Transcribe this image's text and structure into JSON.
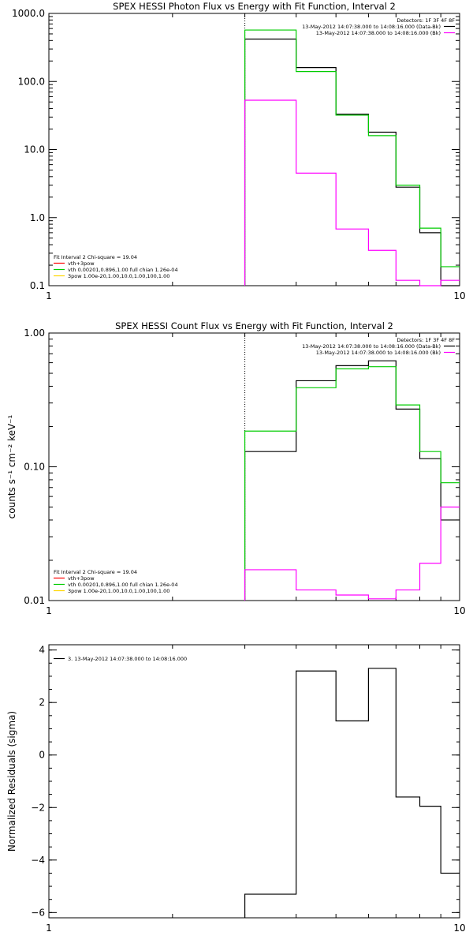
{
  "chart_data": [
    {
      "type": "line",
      "title": "SPEX HESSI Photon Flux vs Energy with Fit Function, Interval 2",
      "xscale": "log",
      "yscale": "log",
      "xlim": [
        1,
        10
      ],
      "ylim": [
        0.1,
        1000
      ],
      "xticks": [
        {
          "v": 1,
          "label": "1"
        },
        {
          "v": 10,
          "label": "10"
        }
      ],
      "yticks": [
        {
          "v": 0.1,
          "label": "0.1"
        },
        {
          "v": 1,
          "label": "1.0"
        },
        {
          "v": 10,
          "label": "10.0"
        },
        {
          "v": 100,
          "label": "100.0"
        },
        {
          "v": 1000,
          "label": "1000.0"
        }
      ],
      "ylabel": "",
      "vline": 3.0,
      "edges": [
        3,
        4,
        5,
        6,
        7,
        8,
        9,
        10
      ],
      "series": [
        {
          "color": "#000000",
          "values": [
            420,
            160,
            33,
            18,
            2.8,
            0.6,
            0.1
          ]
        },
        {
          "color": "#00cc00",
          "values": [
            570,
            140,
            32,
            16,
            3.0,
            0.7,
            0.19
          ]
        },
        {
          "color": "#ff00ff",
          "values": [
            53,
            4.5,
            0.68,
            0.33,
            0.12,
            0.1,
            0.12
          ]
        }
      ],
      "legend_right": {
        "header": "Detectors: 1F 3F 4F 8F",
        "items": [
          {
            "label": "13-May-2012 14:07:38.000 to 14:08:16.000 (Data-Bk)",
            "color": "#000000"
          },
          {
            "label": "13-May-2012 14:07:38.000 to 14:08:16.000 (Bk)",
            "color": "#ff00ff"
          }
        ]
      },
      "legend_left": {
        "header": "Fit Interval 2   Chi-square = 19.04",
        "items": [
          {
            "label": "vth+3pow",
            "color": "#ff0000"
          },
          {
            "label": "vth 0.00201,0.896,1.00   full chian 1.26e-04",
            "color": "#00cc00"
          },
          {
            "label": "3pow 1.00e-20,1.00,10.0,1.00,100,1.00",
            "color": "#ffd700"
          }
        ]
      }
    },
    {
      "type": "line",
      "title": "SPEX HESSI Count Flux vs Energy with Fit Function, Interval 2",
      "xscale": "log",
      "yscale": "log",
      "xlim": [
        1,
        10
      ],
      "ylim": [
        0.01,
        1.0
      ],
      "xticks": [
        {
          "v": 1,
          "label": "1"
        },
        {
          "v": 10,
          "label": "10"
        }
      ],
      "yticks": [
        {
          "v": 0.01,
          "label": "0.01"
        },
        {
          "v": 0.1,
          "label": "0.10"
        },
        {
          "v": 1,
          "label": "1.00"
        }
      ],
      "ylabel": "counts s⁻¹ cm⁻² keV⁻¹",
      "vline": 3.0,
      "edges": [
        3,
        4,
        5,
        6,
        7,
        8,
        9,
        10
      ],
      "series": [
        {
          "color": "#000000",
          "values": [
            0.13,
            0.44,
            0.57,
            0.62,
            0.27,
            0.115,
            0.04
          ]
        },
        {
          "color": "#00cc00",
          "values": [
            0.185,
            0.39,
            0.54,
            0.56,
            0.29,
            0.13,
            0.076
          ]
        },
        {
          "color": "#ff00ff",
          "values": [
            0.017,
            0.012,
            0.011,
            0.0103,
            0.012,
            0.019,
            0.05
          ]
        }
      ],
      "legend_right": {
        "header": "Detectors: 1F 3F 4F 8F",
        "items": [
          {
            "label": "13-May-2012 14:07:38.000 to 14:08:16.000 (Data-Bk)",
            "color": "#000000"
          },
          {
            "label": "13-May-2012 14:07:38.000 to 14:08:16.000 (Bk)",
            "color": "#ff00ff"
          }
        ]
      },
      "legend_left": {
        "header": "Fit Interval 2   Chi-square = 19.04",
        "items": [
          {
            "label": "vth+3pow",
            "color": "#ff0000"
          },
          {
            "label": "vth 0.00201,0.896,1.00   full chian 1.26e-04",
            "color": "#00cc00"
          },
          {
            "label": "3pow 1.00e-20,1.00,10.0,1.00,100,1.00",
            "color": "#ffd700"
          }
        ]
      }
    },
    {
      "type": "line",
      "title": "",
      "xscale": "log",
      "yscale": "linear",
      "xlim": [
        1,
        10
      ],
      "ylim": [
        -6.2,
        4.2
      ],
      "xticks": [
        {
          "v": 1,
          "label": "1"
        },
        {
          "v": 10,
          "label": "10"
        }
      ],
      "yticks": [
        {
          "v": -6,
          "label": "−6"
        },
        {
          "v": -4,
          "label": "−4"
        },
        {
          "v": -2,
          "label": "−2"
        },
        {
          "v": 0,
          "label": "0"
        },
        {
          "v": 2,
          "label": "2"
        },
        {
          "v": 4,
          "label": "4"
        }
      ],
      "ylabel": "Normalized Residuals (sigma)",
      "edges": [
        3,
        4,
        5,
        6,
        7,
        8,
        9,
        10
      ],
      "series": [
        {
          "color": "#000000",
          "values": [
            -5.3,
            3.2,
            1.3,
            3.3,
            -1.6,
            -1.95,
            -4.5
          ]
        }
      ],
      "legend_left": {
        "header": "",
        "items": [
          {
            "label": "3. 13-May-2012 14:07:38.000 to 14:08:16.000",
            "color": "#000000"
          }
        ]
      }
    }
  ]
}
